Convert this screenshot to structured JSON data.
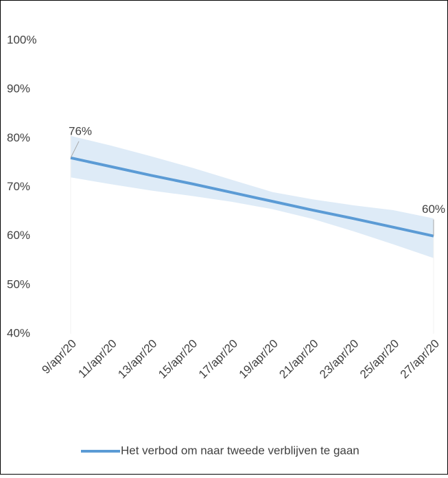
{
  "chart_data": {
    "type": "line",
    "categories": [
      "9/apr/20",
      "11/apr/20",
      "13/apr/20",
      "15/apr/20",
      "17/apr/20",
      "19/apr/20",
      "21/apr/20",
      "23/apr/20",
      "25/apr/20",
      "27/apr/20"
    ],
    "series": [
      {
        "name": "Het verbod om naar tweede verblijven te gaan",
        "color": "#5b9bd5",
        "values": [
          76,
          74.2,
          72.4,
          70.7,
          68.9,
          67.1,
          65.3,
          63.6,
          61.8,
          60
        ],
        "value_labels": [
          "76%",
          null,
          null,
          null,
          null,
          null,
          null,
          null,
          null,
          "60%"
        ],
        "band_lower": [
          72,
          70.6,
          69.3,
          68.2,
          67,
          65.5,
          63.5,
          61,
          58.3,
          55.5
        ],
        "band_upper": [
          80.5,
          78.5,
          76.3,
          74,
          71.5,
          69,
          67.5,
          66.3,
          65.3,
          63.6
        ],
        "band_color": "#deebf7"
      }
    ],
    "ylim": [
      40,
      100
    ],
    "yticks": [
      {
        "value": 40,
        "label": "40%"
      },
      {
        "value": 50,
        "label": "50%"
      },
      {
        "value": 60,
        "label": "60%"
      },
      {
        "value": 70,
        "label": "70%"
      },
      {
        "value": 80,
        "label": "80%"
      },
      {
        "value": 90,
        "label": "90%"
      },
      {
        "value": 100,
        "label": "100%"
      }
    ],
    "legend": "bottom"
  }
}
